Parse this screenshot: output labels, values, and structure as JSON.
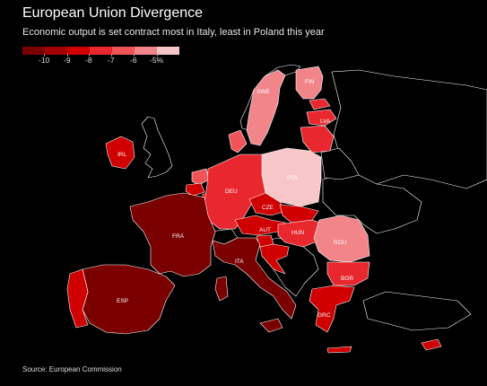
{
  "title": "European Union Divergence",
  "subtitle": "Economic output is set contract most in Italy, least in Poland this year",
  "legend": {
    "colors": [
      "#7a0000",
      "#a30000",
      "#d00000",
      "#e8282e",
      "#f05458",
      "#f2858a",
      "#f7c6c9"
    ],
    "labels": [
      "-10",
      "-9",
      "-8",
      "-7",
      "-6",
      "-5%"
    ]
  },
  "countries": {
    "FIN": "FIN",
    "SWE": "SWE",
    "LVA": "LVA",
    "IRL": "IRL",
    "POL": "POL",
    "DEU": "DEU",
    "CZE": "CZE",
    "FRA": "FRA",
    "AUT": "AUT",
    "HUN": "HUN",
    "ROU": "ROU",
    "ITA": "ITA",
    "BGR": "BGR",
    "ESP": "ESP",
    "GRC": "GRC"
  },
  "colors": {
    "darkest": "#7a0000",
    "dark": "#9a0000",
    "red": "#d10000",
    "mid": "#e8282e",
    "light": "#f05a60",
    "pale": "#f28a90",
    "palest": "#f7c8cb",
    "nonEU": "#000000",
    "border": "#ffffff"
  },
  "source": "Source: European Commission"
}
